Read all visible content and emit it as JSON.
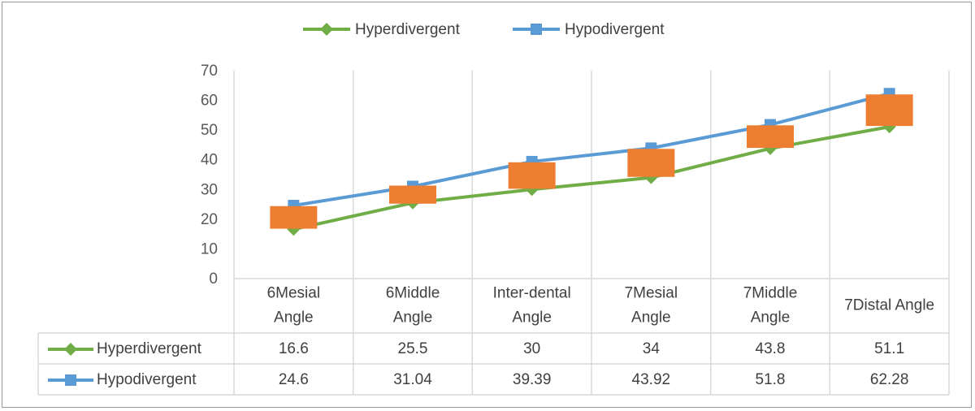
{
  "chart_data": {
    "type": "line",
    "title": "",
    "xlabel": "",
    "ylabel": "",
    "ylim": [
      0,
      70
    ],
    "y_ticks": [
      0,
      10,
      20,
      30,
      40,
      50,
      60,
      70
    ],
    "grid": "vertical",
    "legend_position": "top",
    "categories": [
      [
        "6Mesial",
        "Angle"
      ],
      [
        "6Middle",
        "Angle"
      ],
      [
        "Inter-dental",
        "Angle"
      ],
      [
        "7Mesial",
        "Angle"
      ],
      [
        "7Middle",
        "Angle"
      ],
      [
        "7Distal Angle"
      ]
    ],
    "series": [
      {
        "name": "Hyperdivergent",
        "values": [
          16.6,
          25.5,
          30,
          34,
          43.8,
          51.1
        ],
        "color": "#70ad47",
        "marker": "diamond",
        "labels": [
          "16.6",
          "25.5",
          "30",
          "34",
          "43.8",
          "51.1"
        ]
      },
      {
        "name": "Hypodivergent",
        "values": [
          24.6,
          31.04,
          39.39,
          43.92,
          51.8,
          62.28
        ],
        "color": "#5b9bd5",
        "marker": "square",
        "labels": [
          "24.6",
          "31.04",
          "39.39",
          "43.92",
          "51.8",
          "62.28"
        ]
      }
    ],
    "overlay_marks": {
      "color": "#ed7d31",
      "values_from": "mean_of_series"
    }
  }
}
